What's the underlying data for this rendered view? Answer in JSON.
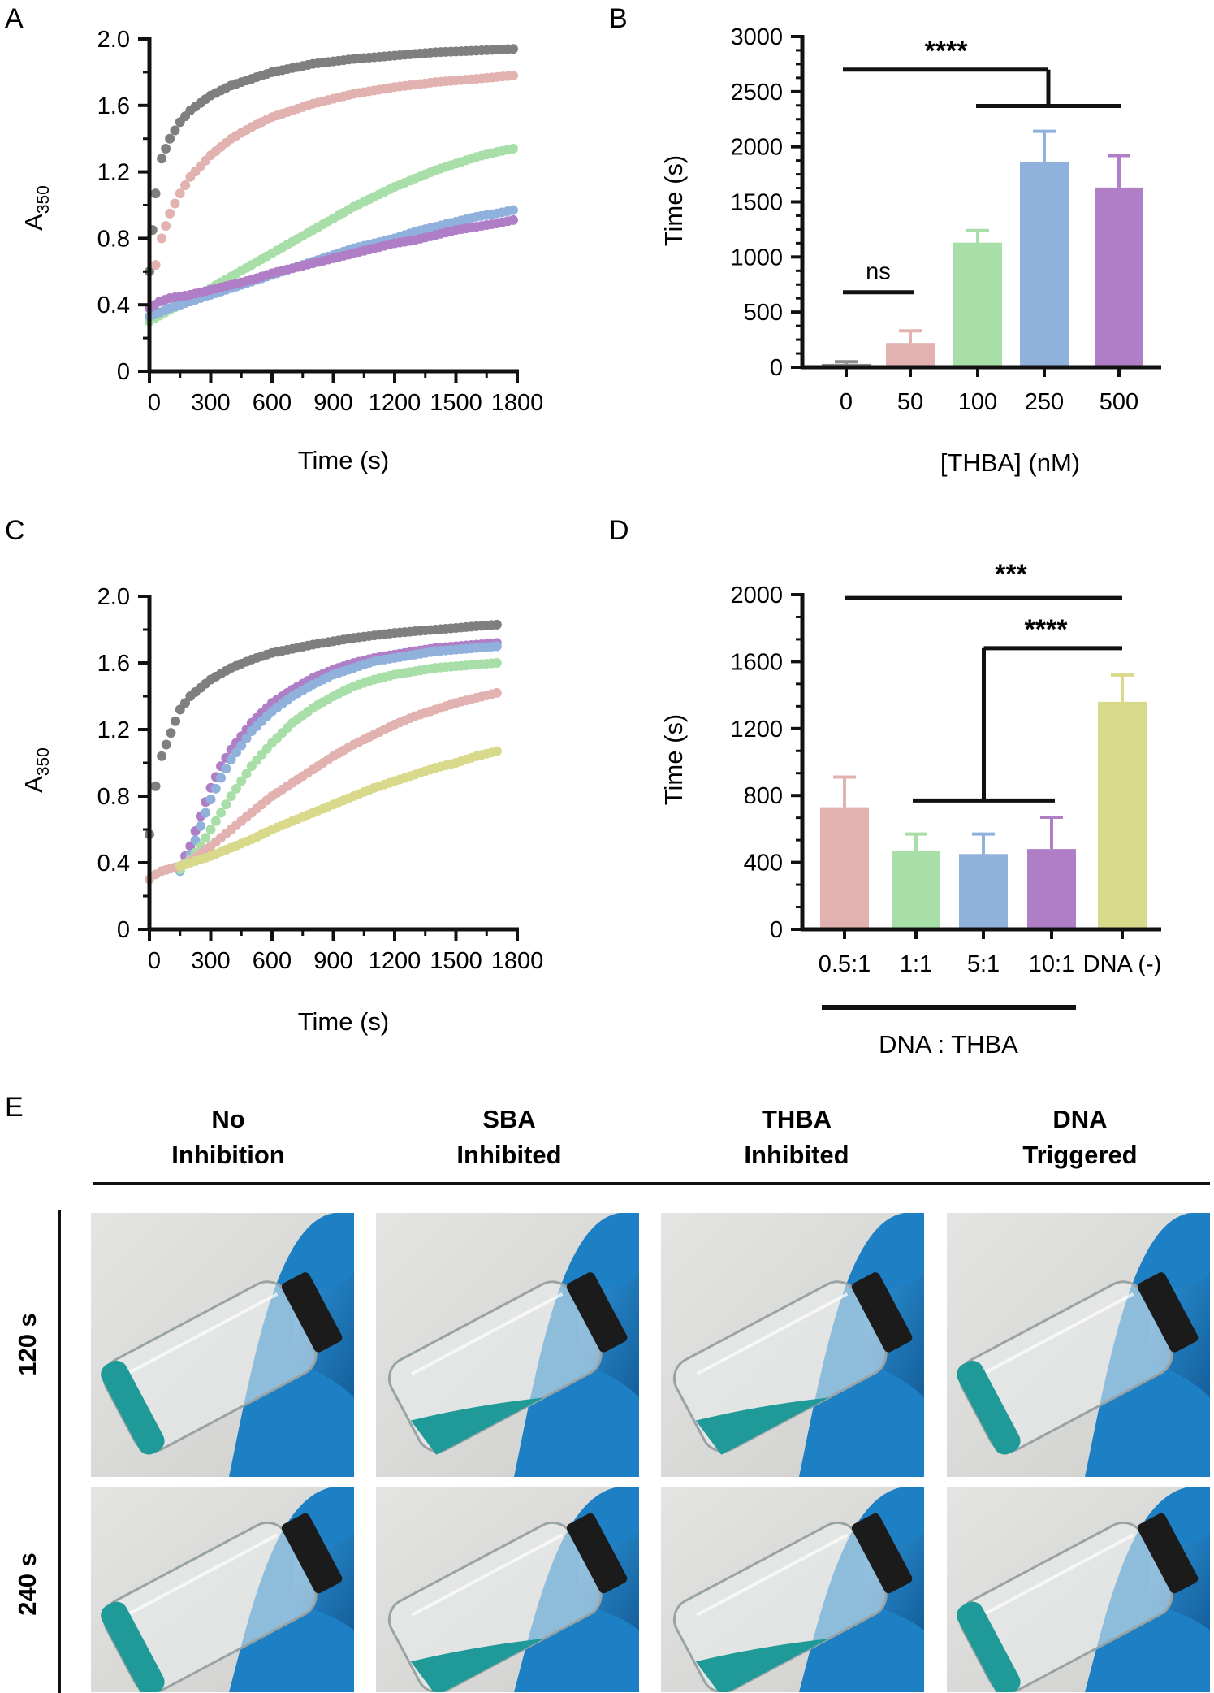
{
  "panel_labels": [
    "A",
    "B",
    "C",
    "D",
    "E"
  ],
  "chart_data": [
    {
      "panel": "A",
      "type": "scatter",
      "xlabel": "Time (s)",
      "ylabel": "A",
      "ylabel_sub": "350",
      "xlim": [
        0,
        1800
      ],
      "ylim": [
        0,
        2.0
      ],
      "x_ticks": [
        "0",
        "300",
        "600",
        "900",
        "1200",
        "1500",
        "1800"
      ],
      "y_ticks": [
        "0",
        "0.4",
        "0.8",
        "1.2",
        "1.6",
        "2.0"
      ],
      "series": [
        {
          "color": "#7f7f7f",
          "x": [
            0,
            15,
            30,
            60,
            100,
            150,
            200,
            300,
            400,
            500,
            600,
            800,
            1000,
            1200,
            1400,
            1600,
            1780
          ],
          "y": [
            0.6,
            0.85,
            1.07,
            1.28,
            1.4,
            1.5,
            1.57,
            1.66,
            1.72,
            1.76,
            1.8,
            1.85,
            1.88,
            1.9,
            1.92,
            1.93,
            1.94
          ]
        },
        {
          "color": "#e2b2b0",
          "x": [
            0,
            30,
            60,
            100,
            150,
            200,
            300,
            400,
            500,
            600,
            800,
            1000,
            1200,
            1400,
            1600,
            1780
          ],
          "y": [
            0.38,
            0.64,
            0.8,
            0.95,
            1.07,
            1.17,
            1.3,
            1.4,
            1.47,
            1.53,
            1.61,
            1.67,
            1.71,
            1.74,
            1.76,
            1.78
          ]
        },
        {
          "color": "#a8dea8",
          "x": [
            0,
            100,
            200,
            300,
            400,
            500,
            600,
            700,
            800,
            900,
            1000,
            1100,
            1200,
            1300,
            1400,
            1500,
            1600,
            1700,
            1780
          ],
          "y": [
            0.3,
            0.37,
            0.43,
            0.5,
            0.57,
            0.64,
            0.71,
            0.78,
            0.85,
            0.92,
            0.99,
            1.05,
            1.11,
            1.16,
            1.21,
            1.25,
            1.29,
            1.32,
            1.34
          ]
        },
        {
          "color": "#8fb1db",
          "x": [
            0,
            100,
            200,
            300,
            400,
            500,
            600,
            700,
            800,
            900,
            1000,
            1100,
            1200,
            1300,
            1400,
            1500,
            1600,
            1700,
            1780
          ],
          "y": [
            0.33,
            0.38,
            0.42,
            0.46,
            0.5,
            0.54,
            0.58,
            0.62,
            0.66,
            0.7,
            0.74,
            0.77,
            0.8,
            0.84,
            0.87,
            0.9,
            0.93,
            0.95,
            0.97
          ]
        },
        {
          "color": "#b07ec6",
          "x": [
            0,
            50,
            100,
            200,
            300,
            400,
            500,
            600,
            700,
            800,
            900,
            1000,
            1100,
            1200,
            1300,
            1400,
            1500,
            1600,
            1700,
            1780
          ],
          "y": [
            0.38,
            0.42,
            0.44,
            0.46,
            0.49,
            0.52,
            0.55,
            0.59,
            0.62,
            0.65,
            0.68,
            0.71,
            0.74,
            0.77,
            0.79,
            0.82,
            0.85,
            0.87,
            0.89,
            0.91
          ]
        }
      ]
    },
    {
      "panel": "B",
      "type": "bar",
      "xlabel": "[THBA] (nM)",
      "ylabel": "Time (s)",
      "ylim": [
        0,
        3000
      ],
      "y_ticks": [
        "0",
        "500",
        "1000",
        "1500",
        "2000",
        "2500",
        "3000"
      ],
      "categories": [
        "0",
        "50",
        "100",
        "250",
        "500"
      ],
      "values": [
        30,
        220,
        1130,
        1860,
        1630
      ],
      "errors": [
        20,
        110,
        110,
        280,
        290
      ],
      "colors": [
        "#8c8c8c",
        "#e2b2b0",
        "#a8dea8",
        "#8fb1db",
        "#b07ec6"
      ],
      "annotations": [
        {
          "text": "****",
          "from": 0,
          "to_group": [
            2,
            4
          ],
          "level": 2700,
          "group_level": 2370
        },
        {
          "text": "ns",
          "from": 0,
          "to": 1,
          "level": 680
        }
      ]
    },
    {
      "panel": "C",
      "type": "scatter",
      "xlabel": "Time (s)",
      "ylabel": "A",
      "ylabel_sub": "350",
      "xlim": [
        0,
        1800
      ],
      "ylim": [
        0,
        2.0
      ],
      "x_ticks": [
        "0",
        "300",
        "600",
        "900",
        "1200",
        "1500",
        "1800"
      ],
      "y_ticks": [
        "0",
        "0.4",
        "0.8",
        "1.2",
        "1.6",
        "2.0"
      ],
      "series": [
        {
          "color": "#7f7f7f",
          "x": [
            0,
            30,
            60,
            150,
            200,
            300,
            400,
            500,
            600,
            800,
            1000,
            1200,
            1400,
            1600,
            1700
          ],
          "y": [
            0.57,
            0.86,
            1.04,
            1.32,
            1.4,
            1.5,
            1.57,
            1.62,
            1.66,
            1.71,
            1.75,
            1.78,
            1.8,
            1.82,
            1.83
          ]
        },
        {
          "color": "#b07ec6",
          "x": [
            150,
            200,
            250,
            300,
            350,
            400,
            500,
            600,
            700,
            800,
            900,
            1000,
            1100,
            1200,
            1300,
            1400,
            1500,
            1600,
            1700
          ],
          "y": [
            0.38,
            0.5,
            0.68,
            0.85,
            0.98,
            1.08,
            1.24,
            1.36,
            1.44,
            1.51,
            1.56,
            1.6,
            1.63,
            1.65,
            1.67,
            1.69,
            1.7,
            1.71,
            1.72
          ]
        },
        {
          "color": "#8fb1db",
          "x": [
            150,
            200,
            250,
            300,
            350,
            400,
            500,
            600,
            700,
            800,
            900,
            1000,
            1100,
            1200,
            1300,
            1400,
            1500,
            1600,
            1700
          ],
          "y": [
            0.35,
            0.45,
            0.62,
            0.78,
            0.91,
            1.02,
            1.19,
            1.31,
            1.4,
            1.47,
            1.53,
            1.57,
            1.61,
            1.63,
            1.65,
            1.67,
            1.68,
            1.69,
            1.7
          ]
        },
        {
          "color": "#a8dea8",
          "x": [
            150,
            200,
            250,
            300,
            400,
            500,
            600,
            700,
            800,
            900,
            1000,
            1100,
            1200,
            1300,
            1400,
            1500,
            1600,
            1700
          ],
          "y": [
            0.36,
            0.42,
            0.5,
            0.6,
            0.8,
            0.98,
            1.12,
            1.24,
            1.33,
            1.4,
            1.46,
            1.5,
            1.53,
            1.55,
            1.57,
            1.58,
            1.59,
            1.6
          ]
        },
        {
          "color": "#e2b2b0",
          "x": [
            0,
            30,
            60,
            150,
            200,
            300,
            400,
            500,
            600,
            700,
            800,
            900,
            1000,
            1100,
            1200,
            1300,
            1400,
            1500,
            1600,
            1700
          ],
          "y": [
            0.3,
            0.33,
            0.35,
            0.38,
            0.41,
            0.5,
            0.6,
            0.7,
            0.8,
            0.88,
            0.96,
            1.04,
            1.11,
            1.17,
            1.23,
            1.28,
            1.32,
            1.36,
            1.39,
            1.42
          ]
        },
        {
          "color": "#d9d98c",
          "x": [
            150,
            200,
            300,
            400,
            500,
            600,
            700,
            800,
            900,
            1000,
            1100,
            1200,
            1300,
            1400,
            1500,
            1600,
            1700
          ],
          "y": [
            0.38,
            0.4,
            0.44,
            0.49,
            0.54,
            0.6,
            0.65,
            0.7,
            0.75,
            0.8,
            0.85,
            0.89,
            0.93,
            0.97,
            1.0,
            1.04,
            1.07
          ]
        }
      ]
    },
    {
      "panel": "D",
      "type": "bar",
      "xlabel": "DNA : THBA",
      "ylabel": "Time (s)",
      "ylim": [
        0,
        2000
      ],
      "y_ticks": [
        "0",
        "400",
        "800",
        "1200",
        "1600",
        "2000"
      ],
      "categories": [
        "0.5:1",
        "1:1",
        "5:1",
        "10:1",
        "DNA (-)"
      ],
      "values": [
        730,
        470,
        450,
        480,
        1360
      ],
      "errors": [
        180,
        100,
        120,
        190,
        160
      ],
      "colors": [
        "#e2b2b0",
        "#a8dea8",
        "#8fb1db",
        "#b07ec6",
        "#d9d98c"
      ],
      "annotations": [
        {
          "text": "***",
          "from": 0,
          "to": 4,
          "level": 1980
        },
        {
          "text": "****",
          "from_group": [
            1,
            3
          ],
          "to": 4,
          "level": 1680,
          "group_level": 770
        }
      ]
    }
  ],
  "photo_grid": {
    "columns": [
      "No\nInhibition",
      "SBA\nInhibited",
      "THBA\nInhibited",
      "DNA\nTriggered"
    ],
    "column_lines": [
      [
        "No",
        "Inhibition"
      ],
      [
        "SBA",
        "Inhibited"
      ],
      [
        "THBA",
        "Inhibited"
      ],
      [
        "DNA",
        "Triggered"
      ]
    ],
    "rows": [
      "120 s",
      "240 s"
    ],
    "liquid_color": "#1f9a98",
    "glove_color": "#1d7fc4",
    "states": [
      [
        "flat",
        "tilted",
        "tilted",
        "flat"
      ],
      [
        "flat",
        "tilted",
        "tilted",
        "flat"
      ]
    ]
  }
}
